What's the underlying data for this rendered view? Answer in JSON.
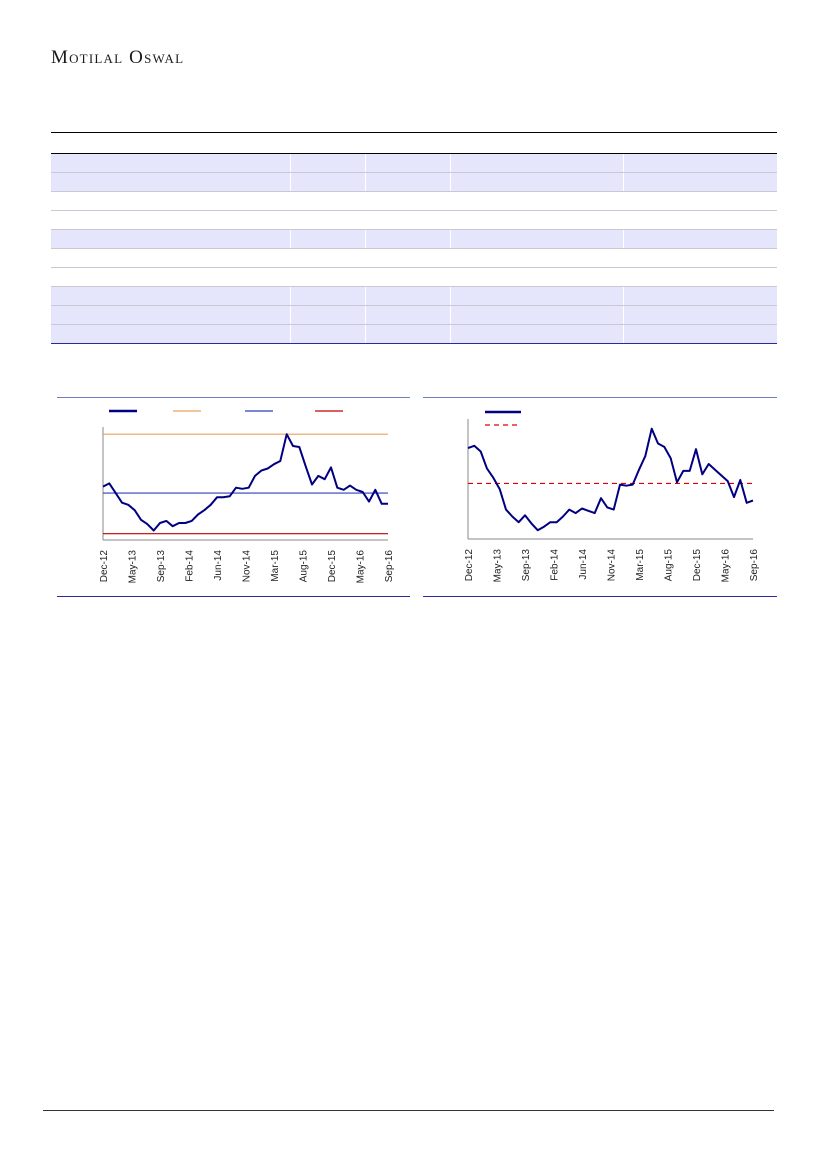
{
  "brand": {
    "name": "Motilal Oswal"
  },
  "colors": {
    "navy": "#000080",
    "orange": "#E8A25C",
    "blue": "#2E3FBF",
    "red": "#C00000",
    "red_dashed": "#E00000",
    "row_shade": "#E5E5FB"
  },
  "table": {
    "row_shading": [
      "shaded",
      "shaded",
      "plain",
      "plain",
      "shaded",
      "plain",
      "plain",
      "shaded",
      "shaded",
      "shaded"
    ]
  },
  "chart_data": [
    {
      "type": "line",
      "x_ticks": [
        "Dec-12",
        "May-13",
        "Sep-13",
        "Feb-14",
        "Jun-14",
        "Nov-14",
        "Mar-15",
        "Aug-15",
        "Dec-15",
        "May-16",
        "Sep-16"
      ],
      "ylim": [
        0,
        100
      ],
      "series": [
        {
          "values": [
            48,
            51,
            42,
            33,
            31,
            26,
            17,
            13,
            7,
            14,
            16,
            11,
            14,
            14,
            16,
            22,
            26,
            31,
            38,
            38,
            39,
            47,
            46,
            47,
            58,
            63,
            65,
            69,
            72,
            97,
            86,
            85,
            67,
            50,
            58,
            55,
            66,
            47,
            45,
            49,
            45,
            43,
            34,
            45,
            32,
            32
          ],
          "color": "#000080"
        }
      ],
      "reference_lines": [
        {
          "value": 97,
          "color": "#E8A25C"
        },
        {
          "value": 42,
          "color": "#2E3FBF"
        },
        {
          "value": 4,
          "color": "#C00000"
        }
      ]
    },
    {
      "type": "line",
      "x_ticks": [
        "Dec-12",
        "May-13",
        "Sep-13",
        "Feb-14",
        "Jun-14",
        "Nov-14",
        "Mar-15",
        "Aug-15",
        "Dec-15",
        "May-16",
        "Sep-16"
      ],
      "ylim": [
        0,
        100
      ],
      "series": [
        {
          "values": [
            78,
            80,
            75,
            60,
            52,
            42,
            24,
            18,
            13,
            19,
            12,
            6,
            9,
            13,
            13,
            18,
            24,
            21,
            25,
            23,
            21,
            34,
            26,
            24,
            46,
            45,
            46,
            59,
            71,
            95,
            82,
            79,
            69,
            48,
            58,
            58,
            77,
            55,
            64,
            59,
            54,
            49,
            35,
            50,
            30,
            32
          ],
          "color": "#000080"
        }
      ],
      "reference_lines": [
        {
          "value": 47,
          "color": "#E00000",
          "dashed": true
        }
      ]
    }
  ]
}
